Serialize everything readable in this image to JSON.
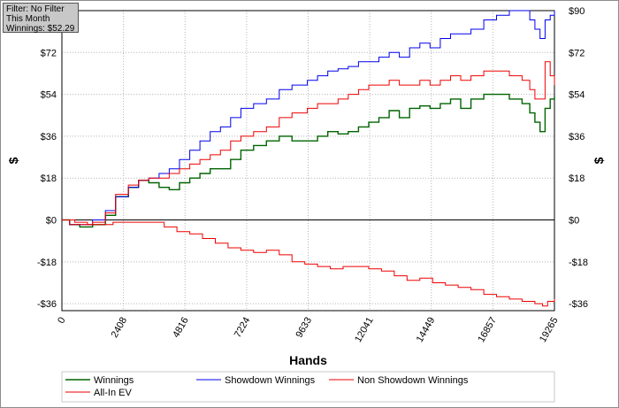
{
  "info_box": {
    "filter": "Filter: No Filter",
    "period": "This Month",
    "winnings": "Winnings: $52.29"
  },
  "chart_data": {
    "type": "line",
    "xlabel": "Hands",
    "ylabel_left": "$",
    "ylabel_right": "$",
    "xlim": [
      0,
      19265
    ],
    "ylim": [
      -39,
      90
    ],
    "x_ticks": [
      0,
      2408,
      4816,
      7224,
      9633,
      12041,
      14449,
      16857,
      19265
    ],
    "x_tick_labels": [
      "0",
      "2408",
      "4816",
      "7224",
      "9633",
      "12041",
      "14449",
      "16857",
      "19265"
    ],
    "y_ticks": [
      -36,
      -18,
      0,
      18,
      36,
      54,
      72,
      90
    ],
    "y_tick_labels": [
      "-$36",
      "-$18",
      "$0",
      "$18",
      "$36",
      "$54",
      "$72",
      "$90"
    ],
    "grid": true,
    "legend_position": "bottom",
    "series": [
      {
        "name": "Winnings",
        "color": "#006400",
        "x": [
          0,
          300,
          700,
          1200,
          1700,
          2100,
          2600,
          3000,
          3400,
          3800,
          4200,
          4600,
          5000,
          5400,
          5800,
          6200,
          6600,
          7000,
          7500,
          8000,
          8500,
          9000,
          9600,
          10000,
          10400,
          10800,
          11200,
          11600,
          12000,
          12400,
          12800,
          13200,
          13600,
          14000,
          14400,
          14800,
          15200,
          15600,
          16000,
          16500,
          17000,
          17500,
          18000,
          18300,
          18500,
          18700,
          18900,
          19100,
          19265
        ],
        "y": [
          0,
          -2,
          -3,
          -2,
          2,
          10,
          14,
          17,
          16,
          14,
          13,
          16,
          18,
          20,
          22,
          22,
          26,
          30,
          32,
          34,
          36,
          34,
          34,
          36,
          38,
          37,
          38,
          40,
          42,
          44,
          47,
          44,
          48,
          49,
          48,
          50,
          52,
          48,
          52,
          54,
          54,
          52,
          50,
          46,
          42,
          38,
          48,
          52,
          53
        ]
      },
      {
        "name": "Showdown Winnings",
        "color": "#0000ee",
        "x": [
          0,
          300,
          700,
          1200,
          1700,
          2100,
          2600,
          3000,
          3400,
          3800,
          4200,
          4600,
          5000,
          5400,
          5800,
          6200,
          6600,
          7000,
          7500,
          8000,
          8500,
          9000,
          9600,
          10000,
          10400,
          10800,
          11200,
          11600,
          12000,
          12400,
          12800,
          13200,
          13600,
          14000,
          14400,
          14800,
          15200,
          15600,
          16000,
          16500,
          17000,
          17500,
          18000,
          18300,
          18500,
          18700,
          18900,
          19100,
          19265
        ],
        "y": [
          0,
          -2,
          -2,
          0,
          4,
          10,
          14,
          17,
          18,
          20,
          22,
          26,
          30,
          34,
          38,
          40,
          44,
          48,
          50,
          52,
          56,
          58,
          60,
          62,
          64,
          65,
          66,
          68,
          68,
          70,
          72,
          70,
          74,
          76,
          74,
          78,
          80,
          80,
          82,
          86,
          88,
          90,
          90,
          86,
          82,
          78,
          86,
          88,
          90
        ]
      },
      {
        "name": "Non Showdown Winnings",
        "color": "#ee0000",
        "x": [
          0,
          500,
          1000,
          1500,
          2000,
          2500,
          3000,
          3500,
          4000,
          4500,
          5000,
          5500,
          6000,
          6500,
          7000,
          7500,
          8000,
          8500,
          9000,
          9500,
          10000,
          10500,
          11000,
          11500,
          12000,
          12500,
          13000,
          13500,
          14000,
          14500,
          15000,
          15500,
          16000,
          16500,
          17000,
          17500,
          18000,
          18500,
          18800,
          19000,
          19265
        ],
        "y": [
          0,
          -1,
          -2,
          -2,
          -1,
          -1,
          -1,
          -1,
          -3,
          -5,
          -6,
          -8,
          -10,
          -12,
          -13,
          -14,
          -13,
          -15,
          -18,
          -19,
          -20,
          -21,
          -20,
          -20,
          -21,
          -22,
          -24,
          -26,
          -25,
          -27,
          -28,
          -29,
          -30,
          -32,
          -33,
          -34,
          -35,
          -36,
          -37,
          -35,
          -34
        ]
      },
      {
        "name": "All-In EV",
        "color": "#ee0000",
        "x": [
          0,
          300,
          700,
          1200,
          1700,
          2100,
          2600,
          3000,
          3400,
          3800,
          4200,
          4600,
          5000,
          5400,
          5800,
          6200,
          6600,
          7000,
          7500,
          8000,
          8500,
          9000,
          9600,
          10000,
          10400,
          10800,
          11200,
          11600,
          12000,
          12400,
          12800,
          13200,
          13600,
          14000,
          14400,
          14800,
          15200,
          15600,
          16000,
          16500,
          17000,
          17500,
          18000,
          18300,
          18500,
          18700,
          18900,
          19100,
          19265
        ],
        "y": [
          0,
          -2,
          -2,
          -1,
          3,
          11,
          15,
          17,
          18,
          18,
          20,
          22,
          24,
          26,
          28,
          30,
          34,
          36,
          38,
          40,
          44,
          46,
          48,
          50,
          50,
          52,
          54,
          56,
          58,
          58,
          60,
          58,
          58,
          60,
          58,
          60,
          62,
          60,
          62,
          64,
          64,
          62,
          60,
          56,
          52,
          52,
          68,
          62,
          58
        ]
      }
    ]
  }
}
